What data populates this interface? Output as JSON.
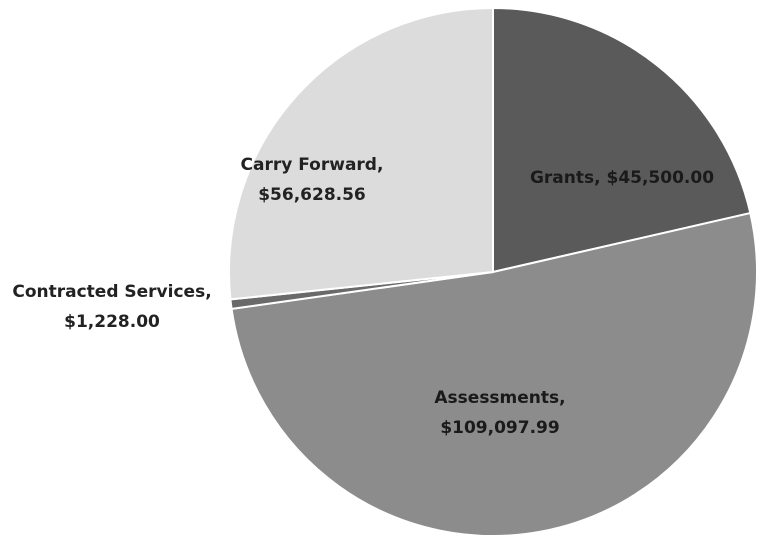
{
  "chart_data": {
    "type": "pie",
    "values": [
      45500.0,
      109097.99,
      1228.0,
      56628.56
    ],
    "value_labels": [
      "Grants, $45,500.00",
      "Assessments, $109,097.99",
      "Contracted Services, $1,228.00",
      "Carry Forward, $56,628.56"
    ],
    "colors": [
      "#5a5a5a",
      "#8c8c8c",
      "#6a6a6a",
      "#dcdcdc"
    ]
  }
}
